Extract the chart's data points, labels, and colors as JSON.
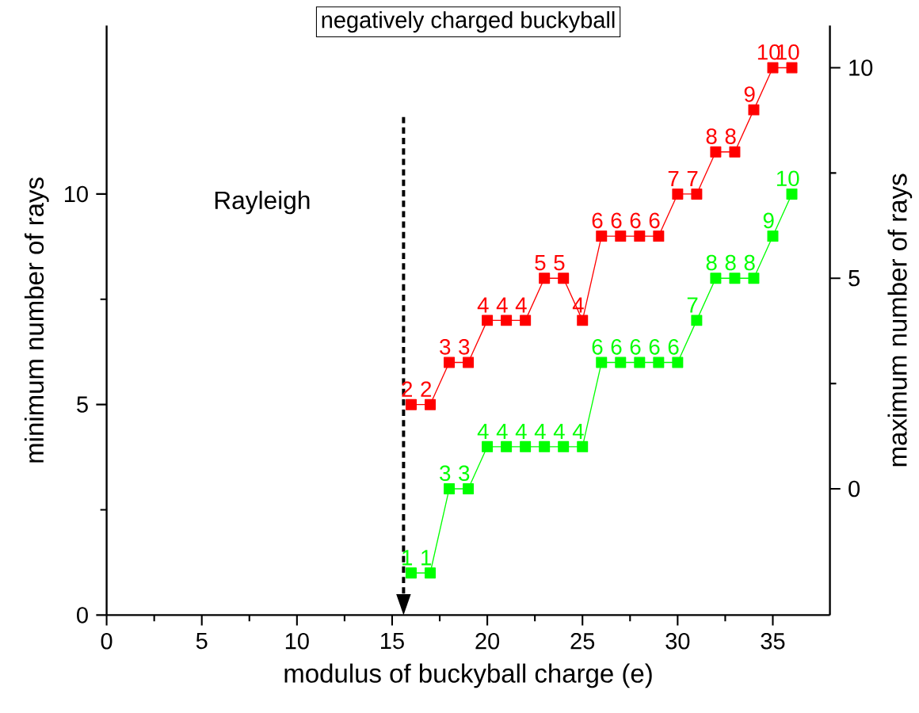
{
  "chart_data": {
    "type": "line",
    "title": "negatively charged buckyball",
    "xlabel": "modulus of buckyball charge (e)",
    "ylabel": "minimum number of rays",
    "y2label": "maximum number of rays",
    "xlim": [
      0,
      38
    ],
    "xticks": [
      0,
      5,
      10,
      15,
      20,
      25,
      30,
      35
    ],
    "ylim": [
      0,
      14
    ],
    "yticks": [
      0,
      5,
      10
    ],
    "y2lim": [
      -3,
      11
    ],
    "y2ticks": [
      0,
      5,
      10
    ],
    "marker": "square",
    "data_labels": true,
    "annotations": [
      "Rayleigh"
    ],
    "ref_lines": [
      {
        "axis": "x",
        "value": 15.6,
        "line_style": "dashed",
        "color": "#000000"
      }
    ],
    "series": [
      {
        "color": "#ff0000",
        "axis": "y2",
        "x": [
          16,
          17,
          18,
          19,
          20,
          21,
          22,
          23,
          24,
          25,
          26,
          27,
          28,
          29,
          30,
          31,
          32,
          33,
          34,
          35,
          36
        ],
        "values": [
          2,
          2,
          3,
          3,
          4,
          4,
          4,
          5,
          5,
          4,
          6,
          6,
          6,
          6,
          7,
          7,
          8,
          8,
          9,
          10,
          10
        ]
      },
      {
        "color": "#00ff00",
        "x": [
          16,
          17,
          18,
          19,
          20,
          21,
          22,
          23,
          24,
          25,
          26,
          27,
          28,
          29,
          30,
          31,
          32,
          33,
          34,
          35,
          36
        ],
        "values": [
          1,
          1,
          3,
          3,
          4,
          4,
          4,
          4,
          4,
          4,
          6,
          6,
          6,
          6,
          6,
          7,
          8,
          8,
          8,
          9,
          10
        ]
      }
    ]
  }
}
